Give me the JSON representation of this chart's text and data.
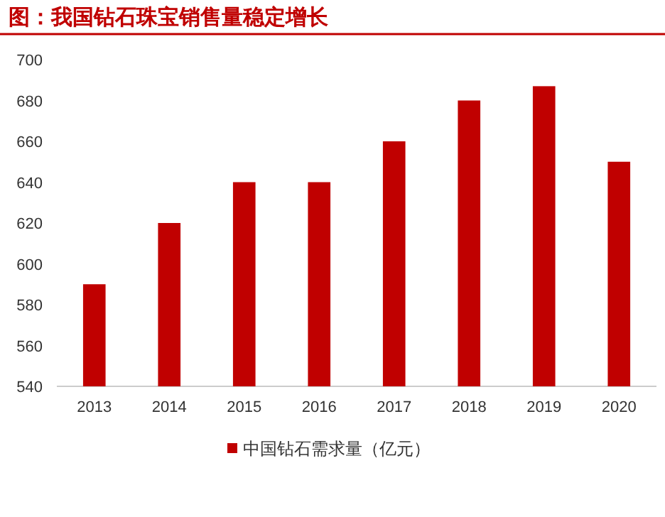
{
  "chart_data": {
    "type": "bar",
    "title": "图：我国钻石珠宝销售量稳定增长",
    "categories": [
      "2013",
      "2014",
      "2015",
      "2016",
      "2017",
      "2018",
      "2019",
      "2020"
    ],
    "series": [
      {
        "name": "中国钻石需求量（亿元）",
        "color": "#c00000",
        "values": [
          590,
          620,
          640,
          640,
          660,
          680,
          687,
          650
        ]
      }
    ],
    "ylim": [
      540,
      700
    ],
    "yticks": [
      540,
      560,
      580,
      600,
      620,
      640,
      660,
      680,
      700
    ],
    "legend": "bottom",
    "grid": false
  }
}
